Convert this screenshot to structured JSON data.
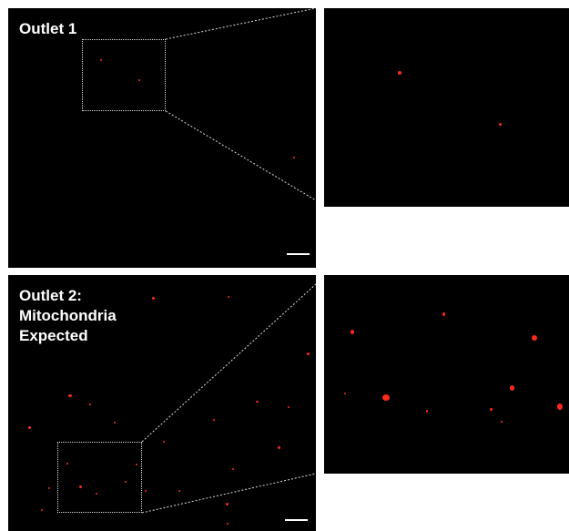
{
  "panels": {
    "outlet1": {
      "title": "Outlet 1"
    },
    "outlet2": {
      "title_lines": [
        "Outlet 2:",
        "Mitochondria",
        "Expected"
      ]
    }
  },
  "colors": {
    "background": "#000000",
    "particle": "#ff2a1a",
    "roi_outline": "#dcdcdc",
    "scale_bar": "#ffffff",
    "page": "#ffffff"
  },
  "icons": [
    "scale-bar",
    "roi-box",
    "zoom-connector-lines"
  ]
}
